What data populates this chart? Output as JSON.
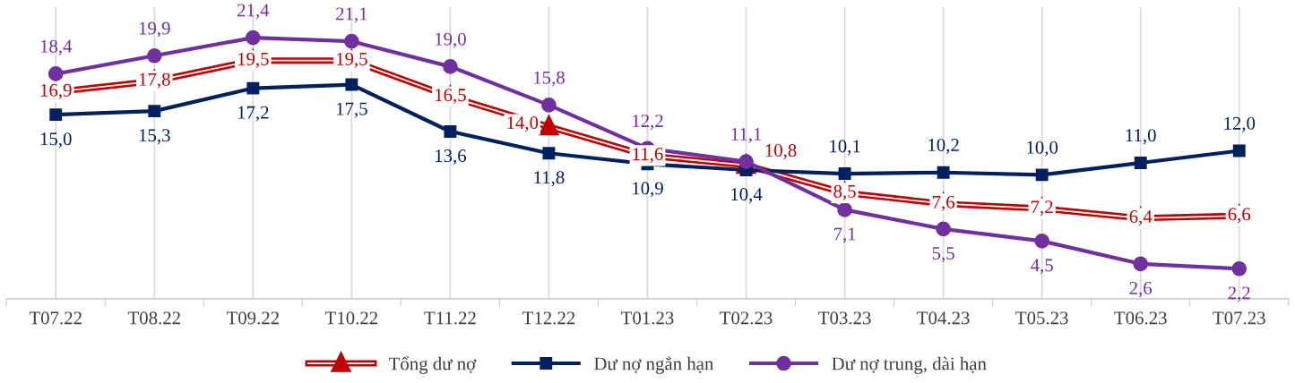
{
  "chart_data": {
    "type": "line",
    "categories": [
      "T07.22",
      "T08.22",
      "T09.22",
      "T10.22",
      "T11.22",
      "T12.22",
      "T01.23",
      "T02.23",
      "T03.23",
      "T04.23",
      "T05.23",
      "T06.23",
      "T07.23"
    ],
    "series": [
      {
        "name": "Tổng dư nợ",
        "color": "#c00000",
        "marker": "triangle",
        "values": [
          16.9,
          17.8,
          19.5,
          19.5,
          16.5,
          14.0,
          11.6,
          10.8,
          8.5,
          7.6,
          7.2,
          6.4,
          6.6
        ],
        "value_labels": [
          "16,9",
          "17,8",
          "19,5",
          "19,5",
          "16,5",
          "14,0",
          "11,6",
          "10,8",
          "8,5",
          "7,6",
          "7,2",
          "6,4",
          "6,6"
        ]
      },
      {
        "name": "Dư nợ ngắn hạn",
        "color": "#002060",
        "marker": "square",
        "values": [
          15.0,
          15.3,
          17.2,
          17.5,
          13.6,
          11.8,
          10.9,
          10.4,
          10.1,
          10.2,
          10.0,
          11.0,
          12.0
        ],
        "value_labels": [
          "15,0",
          "15,3",
          "17,2",
          "17,5",
          "13,6",
          "11,8",
          "10,9",
          "10,4",
          "10,1",
          "10,2",
          "10,0",
          "11,0",
          "12,0"
        ]
      },
      {
        "name": "Dư nợ trung, dài hạn",
        "color": "#7030a0",
        "marker": "circle",
        "values": [
          18.4,
          19.9,
          21.4,
          21.1,
          19.0,
          15.8,
          12.2,
          11.1,
          7.1,
          5.5,
          4.5,
          2.6,
          2.2
        ],
        "value_labels": [
          "18,4",
          "19,9",
          "21,4",
          "21,1",
          "19,0",
          "15,8",
          "12,2",
          "11,1",
          "7,1",
          "5,5",
          "4,5",
          "2,6",
          "2,2"
        ]
      }
    ],
    "grid": "x",
    "legend": "bottom"
  }
}
